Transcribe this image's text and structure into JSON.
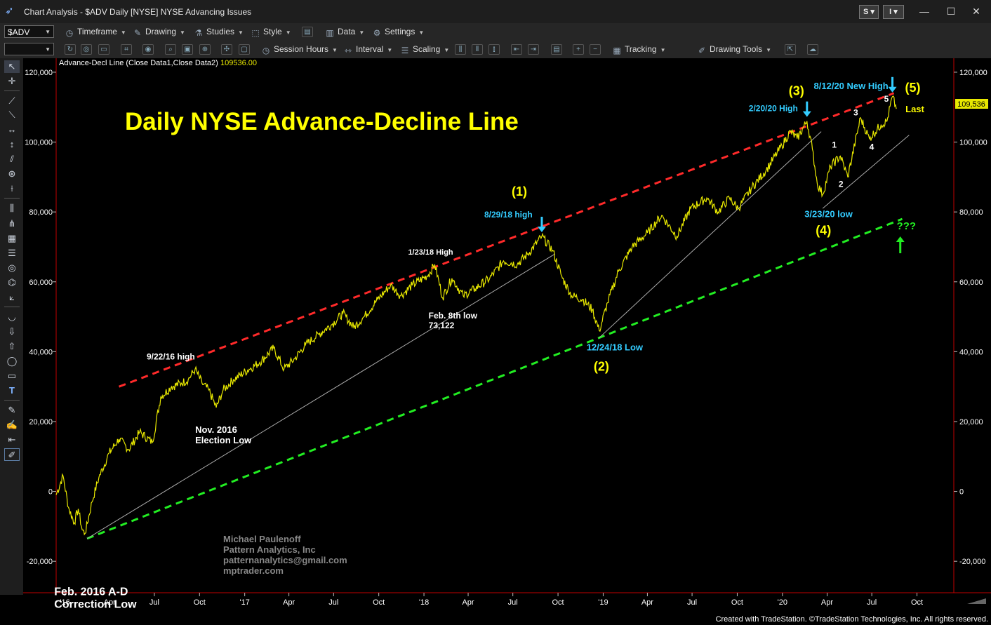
{
  "window": {
    "app_title": "Chart Analysis - $ADV Daily [NYSE] NYSE Advancing Issues",
    "btn_s": "S",
    "btn_i": "I",
    "minimize": "—",
    "maximize": "☐",
    "close": "✕"
  },
  "toolbar1": {
    "symbol": "$ADV",
    "timeframe": "Timeframe",
    "drawing": "Drawing",
    "studies": "Studies",
    "style": "Style",
    "data": "Data",
    "settings": "Settings"
  },
  "toolbar2": {
    "session_hours": "Session Hours",
    "interval": "Interval",
    "scaling": "Scaling",
    "tracking": "Tracking",
    "drawing_tools": "Drawing Tools"
  },
  "icons": {
    "app": "tradestation-logo-icon",
    "timeframe": "clock-icon",
    "drawing": "pencil-icon",
    "studies": "flask-icon",
    "style": "style-icon",
    "data": "bar-data-icon",
    "settings": "gear-icon",
    "session": "clock-icon",
    "interval": "interval-icon",
    "scaling": "scaling-icon",
    "tracking": "grid-icon",
    "drawing_tools": "pen-icon"
  },
  "footer": {
    "credit": "Created with TradeStation. ©TradeStation Technologies, Inc. All rights reserved."
  },
  "chart_data": {
    "type": "line",
    "indicator_label": "Advance-Decl Line (Close Data1,Close Data2)",
    "indicator_value": "109536.00",
    "last_value": "109,536",
    "title": "Daily NYSE Advance-Decline Line",
    "y_ticks": [
      "120,000",
      "100,000",
      "80,000",
      "60,000",
      "40,000",
      "20,000",
      "0",
      "-20,000"
    ],
    "y_tick_values": [
      120000,
      100000,
      80000,
      60000,
      40000,
      20000,
      0,
      -20000
    ],
    "ylim": [
      -29000,
      123000
    ],
    "x_ticks": [
      {
        "label": "'16",
        "date": "2016-01-01"
      },
      {
        "label": "Apr",
        "date": "2016-04-01"
      },
      {
        "label": "Jul",
        "date": "2016-07-01"
      },
      {
        "label": "Oct",
        "date": "2016-10-01"
      },
      {
        "label": "'17",
        "date": "2017-01-01"
      },
      {
        "label": "Apr",
        "date": "2017-04-01"
      },
      {
        "label": "Jul",
        "date": "2017-07-01"
      },
      {
        "label": "Oct",
        "date": "2017-10-01"
      },
      {
        "label": "'18",
        "date": "2018-01-01"
      },
      {
        "label": "Apr",
        "date": "2018-04-01"
      },
      {
        "label": "Jul",
        "date": "2018-07-01"
      },
      {
        "label": "Oct",
        "date": "2018-10-01"
      },
      {
        "label": "'19",
        "date": "2019-01-01"
      },
      {
        "label": "Apr",
        "date": "2019-04-01"
      },
      {
        "label": "Jul",
        "date": "2019-07-01"
      },
      {
        "label": "Oct",
        "date": "2019-10-01"
      },
      {
        "label": "'20",
        "date": "2020-01-01"
      },
      {
        "label": "Apr",
        "date": "2020-04-01"
      },
      {
        "label": "Jul",
        "date": "2020-07-01"
      },
      {
        "label": "Oct",
        "date": "2020-10-01"
      }
    ],
    "xlim": [
      "2015-12-14",
      "2020-12-15"
    ],
    "series": [
      {
        "color": "#e8e800",
        "points": [
          [
            "2015-12-14",
            -1000
          ],
          [
            "2015-12-28",
            4500
          ],
          [
            "2016-01-08",
            -4500
          ],
          [
            "2016-01-20",
            -9000
          ],
          [
            "2016-01-28",
            -5000
          ],
          [
            "2016-02-05",
            -11000
          ],
          [
            "2016-02-11",
            -12000
          ],
          [
            "2016-02-25",
            -3000
          ],
          [
            "2016-03-10",
            4000
          ],
          [
            "2016-03-31",
            11000
          ],
          [
            "2016-04-20",
            15000
          ],
          [
            "2016-05-10",
            12000
          ],
          [
            "2016-06-01",
            17000
          ],
          [
            "2016-06-27",
            14000
          ],
          [
            "2016-07-14",
            27000
          ],
          [
            "2016-08-05",
            30000
          ],
          [
            "2016-08-25",
            31000
          ],
          [
            "2016-09-08",
            32000
          ],
          [
            "2016-09-22",
            35000
          ],
          [
            "2016-10-06",
            31000
          ],
          [
            "2016-10-20",
            29000
          ],
          [
            "2016-11-04",
            24000
          ],
          [
            "2016-11-18",
            29000
          ],
          [
            "2016-12-09",
            32000
          ],
          [
            "2017-01-10",
            35000
          ],
          [
            "2017-02-01",
            37000
          ],
          [
            "2017-03-01",
            41000
          ],
          [
            "2017-03-22",
            35000
          ],
          [
            "2017-04-13",
            38000
          ],
          [
            "2017-05-05",
            42000
          ],
          [
            "2017-06-01",
            45000
          ],
          [
            "2017-06-29",
            48000
          ],
          [
            "2017-07-20",
            51000
          ],
          [
            "2017-08-11",
            47000
          ],
          [
            "2017-09-01",
            50000
          ],
          [
            "2017-09-29",
            55000
          ],
          [
            "2017-10-25",
            59000
          ],
          [
            "2017-11-15",
            56000
          ],
          [
            "2017-12-08",
            59000
          ],
          [
            "2018-01-10",
            62000
          ],
          [
            "2018-01-23",
            65000
          ],
          [
            "2018-02-08",
            55500
          ],
          [
            "2018-02-27",
            61000
          ],
          [
            "2018-03-22",
            56000
          ],
          [
            "2018-04-15",
            58000
          ],
          [
            "2018-05-15",
            61000
          ],
          [
            "2018-06-12",
            66000
          ],
          [
            "2018-07-10",
            65000
          ],
          [
            "2018-08-01",
            68000
          ],
          [
            "2018-08-29",
            73000
          ],
          [
            "2018-09-20",
            69000
          ],
          [
            "2018-10-10",
            61000
          ],
          [
            "2018-10-29",
            56000
          ],
          [
            "2018-11-20",
            55000
          ],
          [
            "2018-12-10",
            52000
          ],
          [
            "2018-12-24",
            46000
          ],
          [
            "2019-01-10",
            54000
          ],
          [
            "2019-02-01",
            63000
          ],
          [
            "2019-03-01",
            70000
          ],
          [
            "2019-04-01",
            74000
          ],
          [
            "2019-04-30",
            79000
          ],
          [
            "2019-05-31",
            73000
          ],
          [
            "2019-06-28",
            81000
          ],
          [
            "2019-07-31",
            84000
          ],
          [
            "2019-08-23",
            80000
          ],
          [
            "2019-09-15",
            84000
          ],
          [
            "2019-10-03",
            81000
          ],
          [
            "2019-10-31",
            87000
          ],
          [
            "2019-11-29",
            92000
          ],
          [
            "2019-12-31",
            99000
          ],
          [
            "2020-01-17",
            103000
          ],
          [
            "2020-01-31",
            101000
          ],
          [
            "2020-02-20",
            106000
          ],
          [
            "2020-03-02",
            98000
          ],
          [
            "2020-03-12",
            88000
          ],
          [
            "2020-03-23",
            85000
          ],
          [
            "2020-04-08",
            93000
          ],
          [
            "2020-04-28",
            96000
          ],
          [
            "2020-05-13",
            90000
          ],
          [
            "2020-06-08",
            107000
          ],
          [
            "2020-06-26",
            101000
          ],
          [
            "2020-07-20",
            105000
          ],
          [
            "2020-08-01",
            106000
          ],
          [
            "2020-08-12",
            113000
          ],
          [
            "2020-08-20",
            109536
          ]
        ]
      }
    ],
    "trendlines": [
      {
        "style": "dashed",
        "color": "#ff2a2a",
        "from": [
          "2016-04-20",
          30000
        ],
        "to": [
          "2020-08-15",
          114000
        ]
      },
      {
        "style": "dashed",
        "color": "#22ee22",
        "from": [
          "2016-02-15",
          -13500
        ],
        "to": [
          "2020-09-01",
          78000
        ]
      },
      {
        "style": "solid",
        "color": "#aaaaaa",
        "from": [
          "2016-02-15",
          -13500
        ],
        "to": [
          "2018-09-25",
          68000
        ]
      },
      {
        "style": "solid",
        "color": "#aaaaaa",
        "from": [
          "2018-12-24",
          44000
        ],
        "to": [
          "2020-03-20",
          103000
        ]
      },
      {
        "style": "solid",
        "color": "#aaaaaa",
        "from": [
          "2020-03-23",
          81000
        ],
        "to": [
          "2020-09-15",
          102000
        ]
      }
    ],
    "annotations": [
      {
        "text": "9/22/16 high",
        "color": "#ffffff",
        "x": "2016-09-22",
        "y": 35000
      },
      {
        "text": "Nov. 2016",
        "color": "#ffffff",
        "x": "2016-11-04",
        "y": 24000
      },
      {
        "text": "Election Low",
        "color": "#ffffff",
        "x": "2016-11-04",
        "y": 24000
      },
      {
        "text": "1/23/18 High",
        "color": "#ffffff",
        "x": "2018-01-23",
        "y": 65000
      },
      {
        "text": "Feb. 8th low",
        "color": "#ffffff",
        "x": "2018-02-08",
        "y": 55500
      },
      {
        "text": "73,122",
        "color": "#ffffff",
        "x": "2018-02-08",
        "y": 55500
      },
      {
        "text": "(1)",
        "color": "#ffff00",
        "x": "2018-08-29",
        "y": 73000
      },
      {
        "text": "8/29/18 high",
        "color": "#33ccff",
        "x": "2018-08-29",
        "y": 73000
      },
      {
        "text": "12/24/18 Low",
        "color": "#33ccff",
        "x": "2018-12-24",
        "y": 46000
      },
      {
        "text": "(2)",
        "color": "#ffff00",
        "x": "2018-12-24",
        "y": 46000
      },
      {
        "text": "(3)",
        "color": "#ffff00",
        "x": "2020-02-20",
        "y": 106000
      },
      {
        "text": "2/20/20 High",
        "color": "#33ccff",
        "x": "2020-02-20",
        "y": 106000
      },
      {
        "text": "8/12/20 New High",
        "color": "#33ccff",
        "x": "2020-08-12",
        "y": 113000
      },
      {
        "text": "(5)",
        "color": "#ffff00",
        "x": "2020-08-12",
        "y": 113000
      },
      {
        "text": "Last",
        "color": "#ffff00",
        "x": "2020-08-20",
        "y": 109536
      },
      {
        "text": "1",
        "color": "#ffffff",
        "x": "2020-04-28",
        "y": 96000
      },
      {
        "text": "2",
        "color": "#ffffff",
        "x": "2020-05-13",
        "y": 90000
      },
      {
        "text": "3",
        "color": "#ffffff",
        "x": "2020-06-08",
        "y": 107000
      },
      {
        "text": "4",
        "color": "#ffffff",
        "x": "2020-06-26",
        "y": 101000
      },
      {
        "text": "5",
        "color": "#ffffff",
        "x": "2020-08-05",
        "y": 111000
      },
      {
        "text": "3/23/20 low",
        "color": "#33ccff",
        "x": "2020-03-23",
        "y": 85000
      },
      {
        "text": "(4)",
        "color": "#ffff00",
        "x": "2020-03-23",
        "y": 85000
      },
      {
        "text": "???",
        "color": "#22ee22",
        "x": "2020-09-01",
        "y": 78000
      },
      {
        "text": "Feb. 2016 A-D",
        "color": "#ffffff",
        "x": "2016-02-11",
        "y": -12000
      },
      {
        "text": "Correction Low",
        "color": "#ffffff",
        "x": "2016-02-11",
        "y": -12000
      }
    ],
    "arrows": [
      {
        "color": "#33ccff",
        "direction": "down",
        "x": "2018-08-29",
        "y": 73000
      },
      {
        "color": "#33ccff",
        "direction": "down",
        "x": "2020-02-20",
        "y": 106000
      },
      {
        "color": "#33ccff",
        "direction": "down",
        "x": "2020-08-12",
        "y": 113000
      },
      {
        "color": "#22ee22",
        "direction": "up",
        "x": "2020-08-28",
        "y": 74000
      }
    ],
    "signature": [
      "Michael Paulenoff",
      "Pattern Analytics, Inc",
      "patternanalytics@gmail.com",
      "mptrader.com"
    ]
  }
}
